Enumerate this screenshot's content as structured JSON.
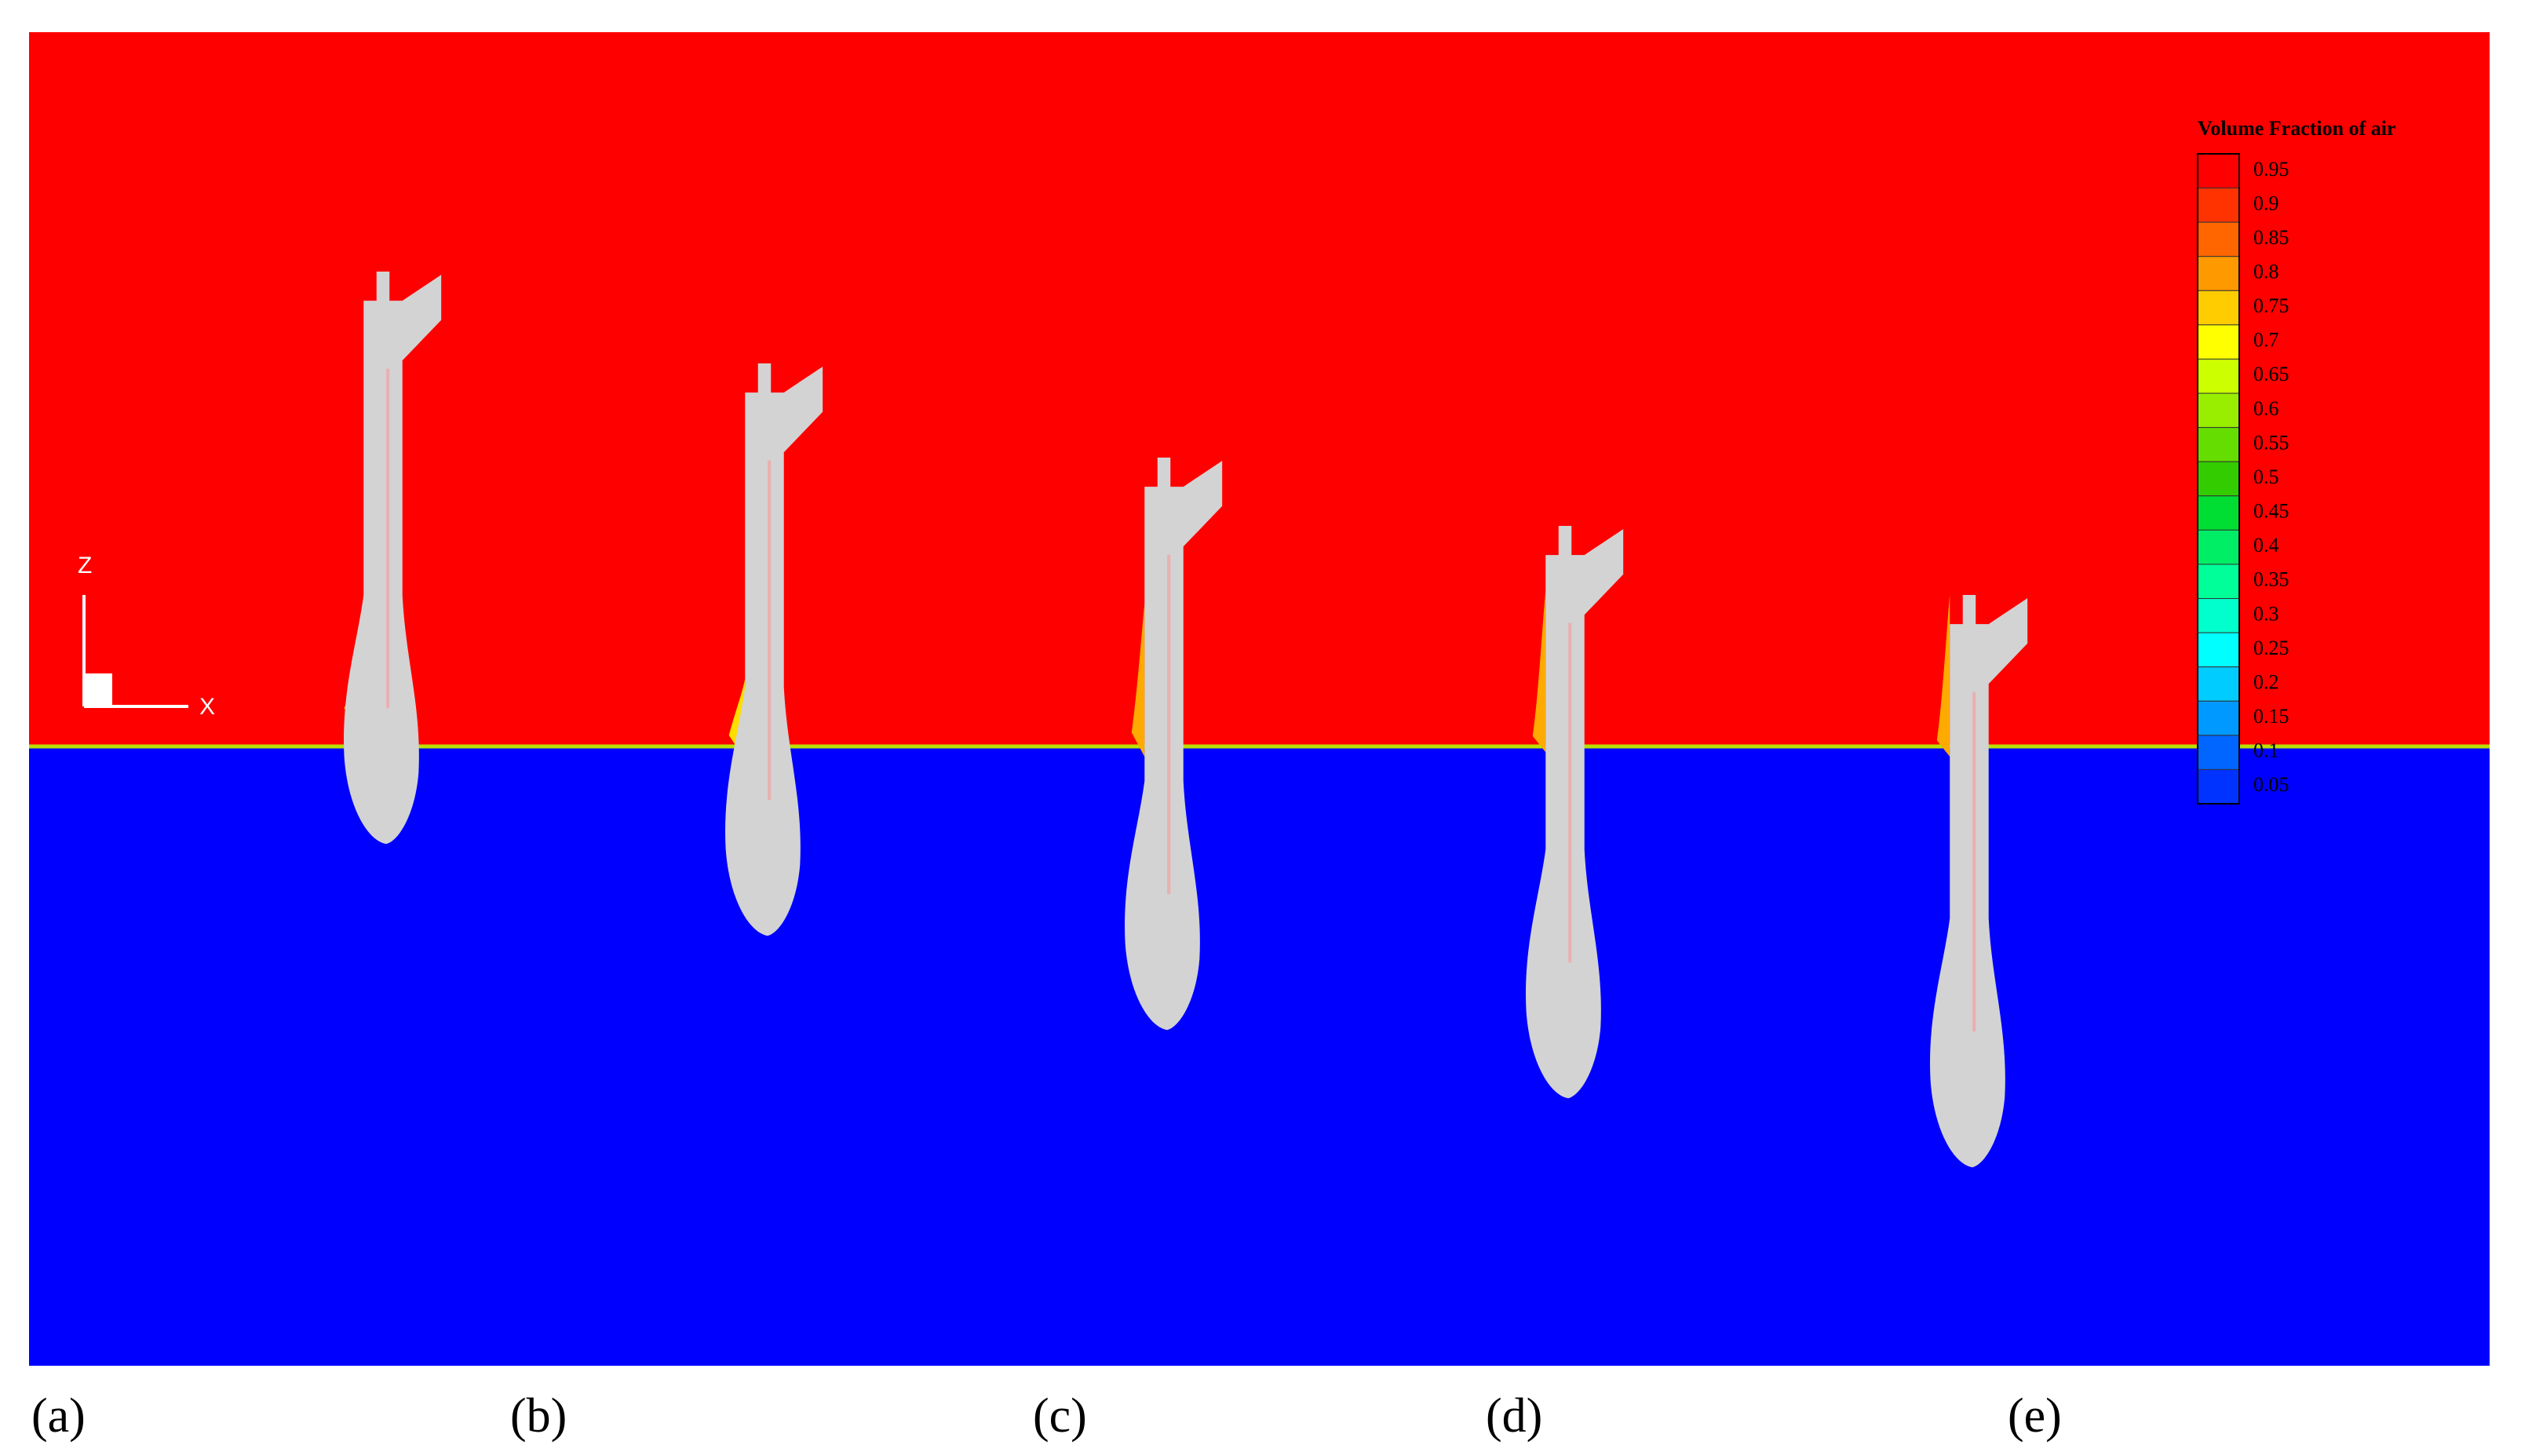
{
  "figure": {
    "axes": {
      "vertical": "Z",
      "horizontal": "X"
    },
    "colorbar": {
      "title": "Volume Fraction of air",
      "ticks": [
        0.95,
        0.9,
        0.85,
        0.8,
        0.75,
        0.7,
        0.65,
        0.6,
        0.55,
        0.5,
        0.45,
        0.4,
        0.35,
        0.3,
        0.25,
        0.2,
        0.15,
        0.1,
        0.05
      ],
      "colors": [
        "#ff0000",
        "#ff3300",
        "#ff6600",
        "#ff9900",
        "#ffcc00",
        "#ffff00",
        "#ccff00",
        "#99ee00",
        "#66dd00",
        "#33cc00",
        "#00dd33",
        "#00ee66",
        "#00ff99",
        "#00ffcc",
        "#00ffff",
        "#00ccff",
        "#0099ff",
        "#0066ff",
        "#0033ff"
      ]
    },
    "panels": [
      "(a)",
      "(b)",
      "(c)",
      "(d)",
      "(e)"
    ]
  }
}
